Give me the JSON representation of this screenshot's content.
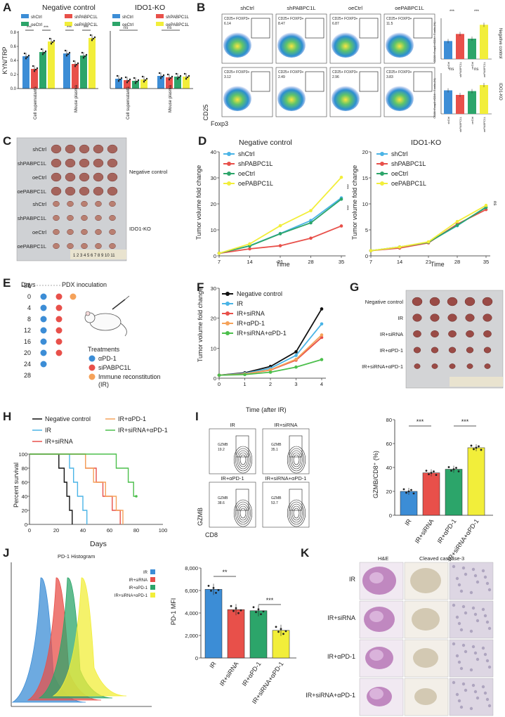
{
  "colors": {
    "blue": "#3c8dd6",
    "red": "#e8504a",
    "green": "#2ca56a",
    "yellow": "#f2ee3a",
    "cyan": "#4ab4e6",
    "black": "#111111",
    "orange": "#f5a25a",
    "lgreen": "#4cbf4c"
  },
  "panelA": {
    "letter": "A",
    "title_left": "Negative control",
    "title_right": "IDO1-KO",
    "legend": [
      "shCtrl",
      "shPABPC1L",
      "oeCtrl",
      "oePABPC1L"
    ],
    "ylabel": "KYN/TRP",
    "yticks": [
      "0.0",
      "0.2",
      "0.4",
      "0.6",
      "0.8"
    ],
    "xcats": [
      "Cell supernatants",
      "Mouse plasma"
    ],
    "sig": [
      "***",
      "***",
      "***",
      "***"
    ],
    "ns": [
      "ns",
      "ns"
    ]
  },
  "panelB": {
    "letter": "B",
    "cols": [
      "shCtrl",
      "shPABPC1L",
      "oeCtrl",
      "oePABPC1L"
    ],
    "row_labels": [
      "Negative control",
      "IDO1-KO"
    ],
    "gate_prefix": "CD25+ FOXP3+",
    "gate_values_top": [
      "6.14",
      "8.47",
      "6.87",
      "11.5"
    ],
    "gate_values_bottom": [
      "3.12",
      "2.49",
      "2.96",
      "3.83"
    ],
    "xaxis": "Foxp3",
    "yaxis": "CD25",
    "bar_ylabel": "CD25+Foxp3+/CD4+ T cells (%)",
    "sig": [
      "***",
      "***"
    ],
    "ns": [
      "ns",
      "ns"
    ]
  },
  "panelC": {
    "letter": "C",
    "rows": [
      "shCtrl",
      "shPABPC1L",
      "oeCtrl",
      "oePABPC1L",
      "shCtrl",
      "shPABPC1L",
      "oeCtrl",
      "oePABPC1L"
    ],
    "group_labels": [
      "Negative control",
      "IDO1-KO"
    ],
    "ruler": "1 2 3 4 5 6 7 8 9 10 11"
  },
  "panelD": {
    "letter": "D",
    "ylabel": "Tumor volume fold change",
    "xlabel": "Time",
    "sig": [
      "***",
      "***"
    ],
    "ns": "ns",
    "chart_data": [
      {
        "type": "line",
        "title": "Negative control",
        "x": [
          7,
          14,
          21,
          28,
          35
        ],
        "ylim": [
          0,
          40
        ],
        "series": [
          {
            "name": "shCtrl",
            "values": [
              1,
              3.9,
              8.6,
              13.6,
              22.3
            ]
          },
          {
            "name": "shPABPC1L",
            "values": [
              1,
              2.7,
              3.9,
              6.8,
              11.5
            ]
          },
          {
            "name": "oeCtrl",
            "values": [
              1,
              3.8,
              8.5,
              12.7,
              21.8
            ]
          },
          {
            "name": "oePABPC1L",
            "values": [
              1,
              4.6,
              11.6,
              17.4,
              30.2
            ]
          }
        ]
      },
      {
        "type": "line",
        "title": "IDO1-KO",
        "x": [
          7,
          14,
          21,
          28,
          35
        ],
        "ylim": [
          0,
          20
        ],
        "series": [
          {
            "name": "shCtrl",
            "values": [
              1,
              1.7,
              2.6,
              5.8,
              9.4
            ]
          },
          {
            "name": "shPABPC1L",
            "values": [
              1,
              1.5,
              2.5,
              6.1,
              8.9
            ]
          },
          {
            "name": "oeCtrl",
            "values": [
              1,
              1.7,
              2.6,
              5.9,
              9.3
            ]
          },
          {
            "name": "oePABPC1L",
            "values": [
              1,
              1.7,
              2.7,
              6.6,
              9.7
            ]
          }
        ]
      }
    ]
  },
  "panelE": {
    "letter": "E",
    "days_label": "Days",
    "days": [
      "-21",
      "0",
      "4",
      "8",
      "12",
      "16",
      "20",
      "24",
      "28"
    ],
    "pdx": "PDX inoculation",
    "treatments": "Treatments",
    "legend": [
      "αPD-1",
      "siPABPC1L",
      "Immune reconstitution (IR)"
    ]
  },
  "panelF": {
    "letter": "F",
    "ylabel": "Tumor volume fold change",
    "xlabel": "Time (after IR)",
    "chart_data": {
      "type": "line",
      "x": [
        0,
        1,
        2,
        3,
        4
      ],
      "ylim": [
        0,
        30
      ],
      "series": [
        {
          "name": "Negative control",
          "values": [
            1,
            1.8,
            3.9,
            8.8,
            23.1
          ]
        },
        {
          "name": "IR",
          "values": [
            1,
            1.6,
            3.3,
            7.6,
            18.1
          ]
        },
        {
          "name": "IR+siRNA",
          "values": [
            1,
            1.4,
            2.7,
            6.0,
            13.6
          ]
        },
        {
          "name": "IR+αPD-1",
          "values": [
            1,
            1.4,
            2.8,
            6.3,
            14.4
          ]
        },
        {
          "name": "IR+siRNA+αPD-1",
          "values": [
            1,
            1.2,
            2.0,
            3.7,
            6.2
          ]
        }
      ]
    }
  },
  "panelG": {
    "letter": "G",
    "rows": [
      "Negative control",
      "IR",
      "IR+siRNA",
      "IR+αPD-1",
      "IR+siRNA+αPD-1"
    ]
  },
  "panelH": {
    "letter": "H",
    "ylabel": "Percent survival",
    "xlabel": "Days",
    "chart_data": {
      "type": "line",
      "xlim": [
        0,
        100
      ],
      "ylim": [
        0,
        100
      ],
      "series": [
        {
          "name": "Negative control",
          "x": [
            0,
            22,
            22,
            26,
            26,
            28,
            28,
            30,
            30,
            32,
            32
          ],
          "values": [
            100,
            100,
            80,
            80,
            60,
            60,
            40,
            40,
            20,
            20,
            0
          ]
        },
        {
          "name": "IR",
          "x": [
            0,
            30,
            30,
            33,
            33,
            36,
            36,
            40,
            40,
            43,
            43
          ],
          "values": [
            100,
            100,
            80,
            80,
            60,
            60,
            40,
            40,
            20,
            20,
            0
          ]
        },
        {
          "name": "IR+siRNA",
          "x": [
            0,
            42,
            42,
            50,
            50,
            55,
            55,
            62,
            62,
            68,
            68
          ],
          "values": [
            100,
            100,
            80,
            80,
            60,
            60,
            40,
            40,
            20,
            20,
            0
          ]
        },
        {
          "name": "IR+αPD-1",
          "x": [
            0,
            42,
            42,
            48,
            48,
            57,
            57,
            65,
            65,
            70,
            70
          ],
          "values": [
            100,
            100,
            80,
            80,
            60,
            60,
            40,
            40,
            20,
            20,
            0
          ]
        },
        {
          "name": "IR+siRNA+αPD-1",
          "x": [
            0,
            65,
            65,
            74,
            74,
            78,
            78,
            80
          ],
          "values": [
            100,
            100,
            80,
            80,
            60,
            60,
            40,
            40
          ]
        }
      ]
    }
  },
  "panelI": {
    "letter": "I",
    "facs": [
      {
        "name": "IR",
        "gate": "GZMB",
        "value": "19.2"
      },
      {
        "name": "IR+siRNA",
        "gate": "GZMB",
        "value": "35.1"
      },
      {
        "name": "IR+αPD-1",
        "gate": "GZMB",
        "value": "38.6"
      },
      {
        "name": "IR+siRNA+αPD-1",
        "gate": "GZMB",
        "value": "53.7"
      }
    ],
    "xaxis": "CD8",
    "yaxis": "GZMB",
    "sig": [
      "***",
      "***"
    ],
    "chart_data": {
      "type": "bar",
      "ylabel": "GZMB/CD8⁺ (%)",
      "categories": [
        "IR",
        "IR+siRNA",
        "IR+αPD-1",
        "IR+siRNA+αPD-1"
      ],
      "values": [
        20,
        35.5,
        38.5,
        56.5
      ],
      "ylim": [
        0,
        80
      ],
      "yticks": [
        "0",
        "20",
        "40",
        "60",
        "80"
      ]
    }
  },
  "panelJ": {
    "letter": "J",
    "hist_title": "PD-1 Histogram",
    "legend": [
      "IR",
      "IR+siRNA",
      "IR+αPD-1",
      "IR+siRNA+αPD-1"
    ],
    "sig": [
      "**",
      "***"
    ],
    "chart_data": {
      "type": "bar",
      "ylabel": "PD-1 MFI",
      "categories": [
        "IR",
        "IR+siRNA",
        "IR+αPD-1",
        "IR+siRNA+αPD-1"
      ],
      "values": [
        6100,
        4300,
        4200,
        2450
      ],
      "ylim": [
        0,
        8000
      ],
      "yticks": [
        "0",
        "2,000",
        "4,000",
        "6,000",
        "8,000"
      ]
    }
  },
  "panelK": {
    "letter": "K",
    "cols": [
      "H&E",
      "Cleaved caspase-3"
    ],
    "rows": [
      "IR",
      "IR+siRNA",
      "IR+αPD-1",
      "IR+siRNA+αPD-1"
    ]
  }
}
